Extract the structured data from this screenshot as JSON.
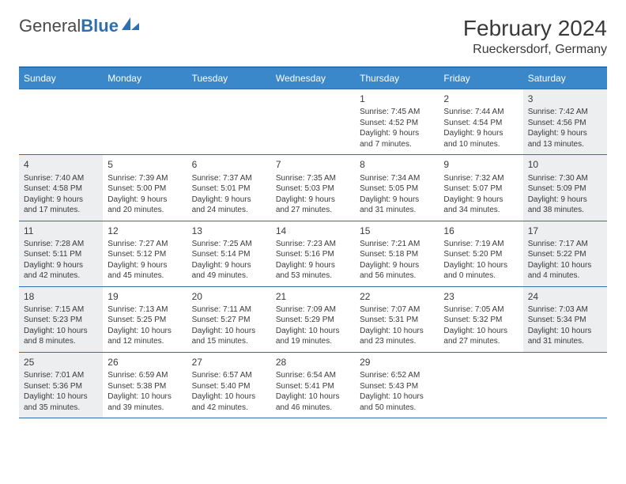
{
  "logo": {
    "text_gray": "General",
    "text_blue": "Blue"
  },
  "title": "February 2024",
  "location": "Rueckersdorf, Germany",
  "colors": {
    "header_bg": "#3a87c9",
    "header_text": "#ffffff",
    "border": "#2f6fb0",
    "shaded_bg": "#eceeef",
    "text": "#3a3a3a"
  },
  "day_headers": [
    "Sunday",
    "Monday",
    "Tuesday",
    "Wednesday",
    "Thursday",
    "Friday",
    "Saturday"
  ],
  "weeks": [
    [
      {
        "empty": true
      },
      {
        "empty": true
      },
      {
        "empty": true
      },
      {
        "empty": true
      },
      {
        "day": "1",
        "sunrise": "Sunrise: 7:45 AM",
        "sunset": "Sunset: 4:52 PM",
        "daylight1": "Daylight: 9 hours",
        "daylight2": "and 7 minutes."
      },
      {
        "day": "2",
        "sunrise": "Sunrise: 7:44 AM",
        "sunset": "Sunset: 4:54 PM",
        "daylight1": "Daylight: 9 hours",
        "daylight2": "and 10 minutes."
      },
      {
        "day": "3",
        "shaded": true,
        "sunrise": "Sunrise: 7:42 AM",
        "sunset": "Sunset: 4:56 PM",
        "daylight1": "Daylight: 9 hours",
        "daylight2": "and 13 minutes."
      }
    ],
    [
      {
        "day": "4",
        "shaded": true,
        "sunrise": "Sunrise: 7:40 AM",
        "sunset": "Sunset: 4:58 PM",
        "daylight1": "Daylight: 9 hours",
        "daylight2": "and 17 minutes."
      },
      {
        "day": "5",
        "sunrise": "Sunrise: 7:39 AM",
        "sunset": "Sunset: 5:00 PM",
        "daylight1": "Daylight: 9 hours",
        "daylight2": "and 20 minutes."
      },
      {
        "day": "6",
        "sunrise": "Sunrise: 7:37 AM",
        "sunset": "Sunset: 5:01 PM",
        "daylight1": "Daylight: 9 hours",
        "daylight2": "and 24 minutes."
      },
      {
        "day": "7",
        "sunrise": "Sunrise: 7:35 AM",
        "sunset": "Sunset: 5:03 PM",
        "daylight1": "Daylight: 9 hours",
        "daylight2": "and 27 minutes."
      },
      {
        "day": "8",
        "sunrise": "Sunrise: 7:34 AM",
        "sunset": "Sunset: 5:05 PM",
        "daylight1": "Daylight: 9 hours",
        "daylight2": "and 31 minutes."
      },
      {
        "day": "9",
        "sunrise": "Sunrise: 7:32 AM",
        "sunset": "Sunset: 5:07 PM",
        "daylight1": "Daylight: 9 hours",
        "daylight2": "and 34 minutes."
      },
      {
        "day": "10",
        "shaded": true,
        "sunrise": "Sunrise: 7:30 AM",
        "sunset": "Sunset: 5:09 PM",
        "daylight1": "Daylight: 9 hours",
        "daylight2": "and 38 minutes."
      }
    ],
    [
      {
        "day": "11",
        "shaded": true,
        "sunrise": "Sunrise: 7:28 AM",
        "sunset": "Sunset: 5:11 PM",
        "daylight1": "Daylight: 9 hours",
        "daylight2": "and 42 minutes."
      },
      {
        "day": "12",
        "sunrise": "Sunrise: 7:27 AM",
        "sunset": "Sunset: 5:12 PM",
        "daylight1": "Daylight: 9 hours",
        "daylight2": "and 45 minutes."
      },
      {
        "day": "13",
        "sunrise": "Sunrise: 7:25 AM",
        "sunset": "Sunset: 5:14 PM",
        "daylight1": "Daylight: 9 hours",
        "daylight2": "and 49 minutes."
      },
      {
        "day": "14",
        "sunrise": "Sunrise: 7:23 AM",
        "sunset": "Sunset: 5:16 PM",
        "daylight1": "Daylight: 9 hours",
        "daylight2": "and 53 minutes."
      },
      {
        "day": "15",
        "sunrise": "Sunrise: 7:21 AM",
        "sunset": "Sunset: 5:18 PM",
        "daylight1": "Daylight: 9 hours",
        "daylight2": "and 56 minutes."
      },
      {
        "day": "16",
        "sunrise": "Sunrise: 7:19 AM",
        "sunset": "Sunset: 5:20 PM",
        "daylight1": "Daylight: 10 hours",
        "daylight2": "and 0 minutes."
      },
      {
        "day": "17",
        "shaded": true,
        "sunrise": "Sunrise: 7:17 AM",
        "sunset": "Sunset: 5:22 PM",
        "daylight1": "Daylight: 10 hours",
        "daylight2": "and 4 minutes."
      }
    ],
    [
      {
        "day": "18",
        "shaded": true,
        "sunrise": "Sunrise: 7:15 AM",
        "sunset": "Sunset: 5:23 PM",
        "daylight1": "Daylight: 10 hours",
        "daylight2": "and 8 minutes."
      },
      {
        "day": "19",
        "sunrise": "Sunrise: 7:13 AM",
        "sunset": "Sunset: 5:25 PM",
        "daylight1": "Daylight: 10 hours",
        "daylight2": "and 12 minutes."
      },
      {
        "day": "20",
        "sunrise": "Sunrise: 7:11 AM",
        "sunset": "Sunset: 5:27 PM",
        "daylight1": "Daylight: 10 hours",
        "daylight2": "and 15 minutes."
      },
      {
        "day": "21",
        "sunrise": "Sunrise: 7:09 AM",
        "sunset": "Sunset: 5:29 PM",
        "daylight1": "Daylight: 10 hours",
        "daylight2": "and 19 minutes."
      },
      {
        "day": "22",
        "sunrise": "Sunrise: 7:07 AM",
        "sunset": "Sunset: 5:31 PM",
        "daylight1": "Daylight: 10 hours",
        "daylight2": "and 23 minutes."
      },
      {
        "day": "23",
        "sunrise": "Sunrise: 7:05 AM",
        "sunset": "Sunset: 5:32 PM",
        "daylight1": "Daylight: 10 hours",
        "daylight2": "and 27 minutes."
      },
      {
        "day": "24",
        "shaded": true,
        "sunrise": "Sunrise: 7:03 AM",
        "sunset": "Sunset: 5:34 PM",
        "daylight1": "Daylight: 10 hours",
        "daylight2": "and 31 minutes."
      }
    ],
    [
      {
        "day": "25",
        "shaded": true,
        "sunrise": "Sunrise: 7:01 AM",
        "sunset": "Sunset: 5:36 PM",
        "daylight1": "Daylight: 10 hours",
        "daylight2": "and 35 minutes."
      },
      {
        "day": "26",
        "sunrise": "Sunrise: 6:59 AM",
        "sunset": "Sunset: 5:38 PM",
        "daylight1": "Daylight: 10 hours",
        "daylight2": "and 39 minutes."
      },
      {
        "day": "27",
        "sunrise": "Sunrise: 6:57 AM",
        "sunset": "Sunset: 5:40 PM",
        "daylight1": "Daylight: 10 hours",
        "daylight2": "and 42 minutes."
      },
      {
        "day": "28",
        "sunrise": "Sunrise: 6:54 AM",
        "sunset": "Sunset: 5:41 PM",
        "daylight1": "Daylight: 10 hours",
        "daylight2": "and 46 minutes."
      },
      {
        "day": "29",
        "sunrise": "Sunrise: 6:52 AM",
        "sunset": "Sunset: 5:43 PM",
        "daylight1": "Daylight: 10 hours",
        "daylight2": "and 50 minutes."
      },
      {
        "empty": true
      },
      {
        "empty": true
      }
    ]
  ]
}
